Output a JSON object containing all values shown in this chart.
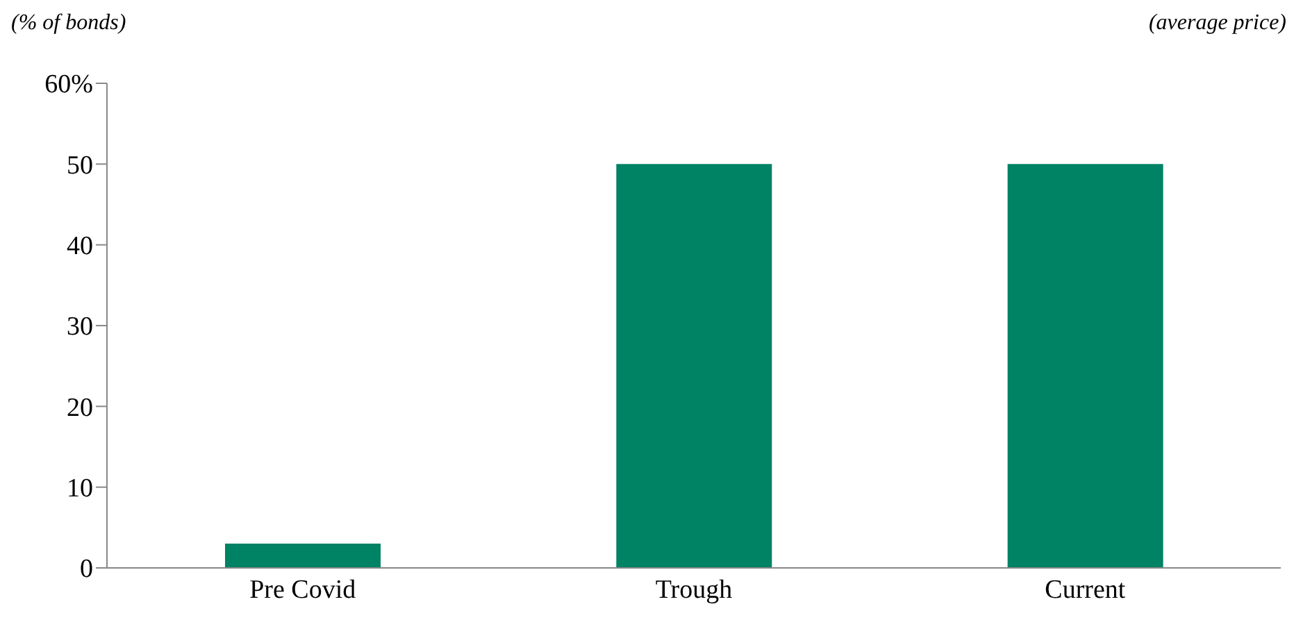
{
  "chart_data": {
    "type": "bar",
    "ylabel": "(% of bonds)",
    "y2label": "(average price)",
    "categories": [
      "Pre Covid",
      "Trough",
      "Current"
    ],
    "values": [
      3,
      50,
      50
    ],
    "color": "#008264",
    "ylim": [
      0,
      60
    ],
    "yticks": [
      0,
      10,
      20,
      30,
      40,
      {
        "value": 60,
        "label": "60%"
      },
      50
    ],
    "grid": false
  }
}
